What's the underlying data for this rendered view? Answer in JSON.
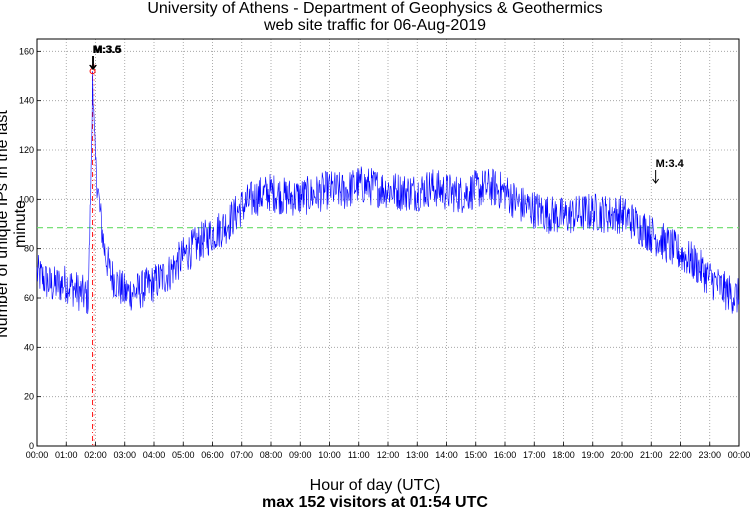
{
  "chart_data": {
    "type": "line",
    "title": "University of Athens - Department of Geophysics & Geothermics",
    "subtitle": "web site traffic for 06-Aug-2019",
    "xlabel": "Hour of day (UTC)",
    "xlabel_note": "max 152 visitors at 01:54 UTC",
    "ylabel": "Number of unique IPs in the last minute",
    "xlim": [
      0,
      24
    ],
    "ylim": [
      0,
      165
    ],
    "grid": true,
    "x_tick_labels": [
      "00:00",
      "01:00",
      "02:00",
      "03:00",
      "04:00",
      "05:00",
      "06:00",
      "07:00",
      "08:00",
      "09:00",
      "10:00",
      "11:00",
      "12:00",
      "13:00",
      "14:00",
      "15:00",
      "16:00",
      "17:00",
      "18:00",
      "19:00",
      "20:00",
      "21:00",
      "22:00",
      "23:00",
      "00:00"
    ],
    "y_ticks": [
      0,
      20,
      40,
      60,
      80,
      100,
      120,
      140,
      160
    ],
    "mean_line": 88.5,
    "max": {
      "time": "01:54",
      "value": 152
    },
    "annotations": [
      {
        "label": "M:3.6",
        "hour": 1.9
      },
      {
        "label": "M:3.5",
        "hour": 1.93
      },
      {
        "label": "M:3.4",
        "hour": 21.15
      }
    ],
    "series": [
      {
        "color": "#0000ff",
        "x": [
          0,
          0.5,
          1,
          1.5,
          1.75,
          1.85,
          1.9,
          2.0,
          2.15,
          2.3,
          2.5,
          3,
          3.5,
          4,
          4.5,
          5,
          5.5,
          6,
          6.5,
          7,
          7.5,
          8,
          8.5,
          9,
          9.5,
          10,
          10.5,
          11,
          11.5,
          12,
          12.5,
          13,
          13.5,
          14,
          14.5,
          15,
          15.5,
          16,
          16.5,
          17,
          17.5,
          18,
          18.5,
          19,
          19.5,
          20,
          20.5,
          21,
          21.5,
          22,
          22.5,
          23,
          23.5,
          24
        ],
        "values": [
          70,
          65,
          66,
          62,
          60,
          110,
          145,
          115,
          95,
          80,
          70,
          62,
          63,
          66,
          70,
          77,
          82,
          86,
          90,
          97,
          101,
          103,
          101,
          101,
          102,
          104,
          103,
          106,
          105,
          104,
          103,
          103,
          105,
          103,
          102,
          104,
          105,
          103,
          98,
          96,
          94,
          93,
          94,
          95,
          94,
          94,
          90,
          86,
          82,
          78,
          74,
          68,
          63,
          60
        ]
      }
    ]
  }
}
